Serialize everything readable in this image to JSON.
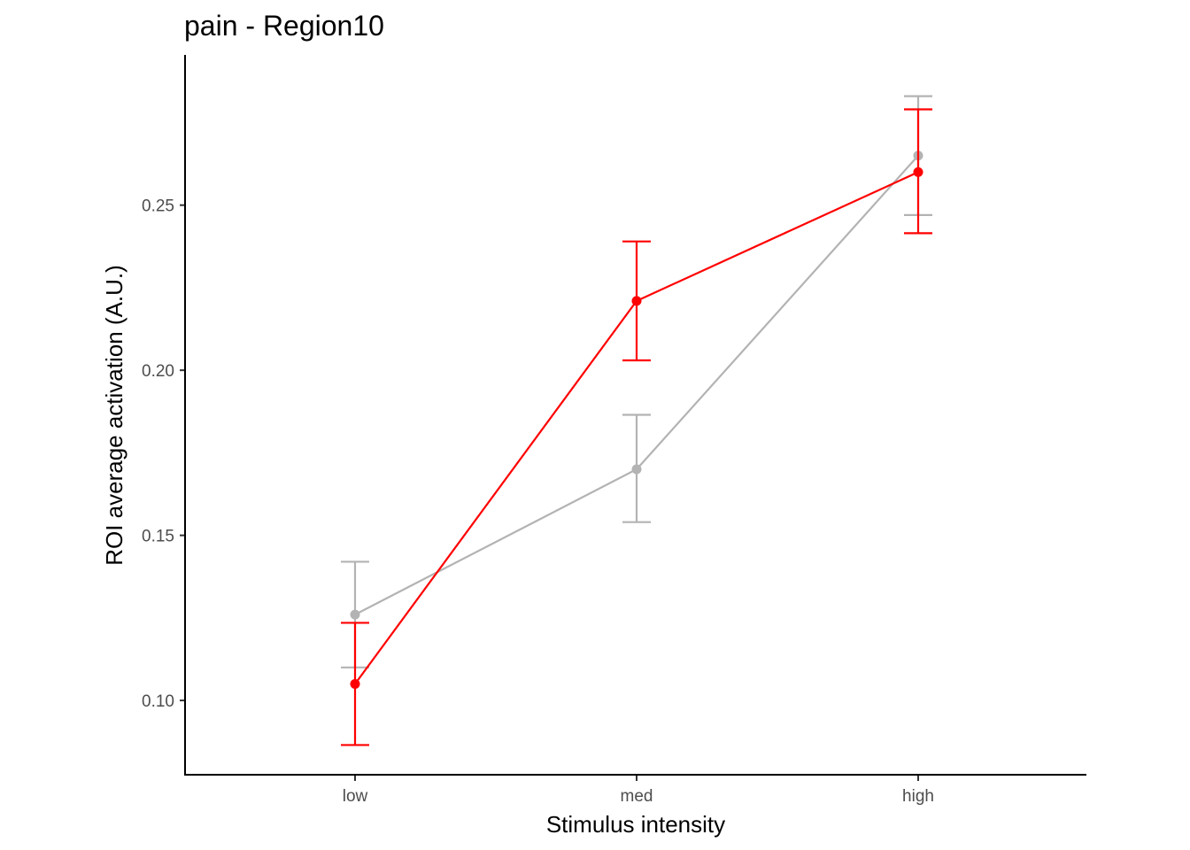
{
  "chart_data": {
    "type": "line",
    "title": "pain  -  Region10",
    "xlabel": "Stimulus intensity",
    "ylabel": "ROI average activation (A.U.)",
    "categories": [
      "low",
      "med",
      "high"
    ],
    "y_ticks": [
      "0.10",
      "0.15",
      "0.20",
      "0.25"
    ],
    "ylim": [
      0.0775,
      0.2955
    ],
    "grid": false,
    "legend": "none",
    "series": [
      {
        "color": "#b3b3b3",
        "values": [
          0.126,
          0.17,
          0.265
        ],
        "err_low": [
          0.11,
          0.154,
          0.247
        ],
        "err_high": [
          0.142,
          0.1865,
          0.283
        ]
      },
      {
        "color": "#ff0000",
        "values": [
          0.105,
          0.221,
          0.26
        ],
        "err_low": [
          0.0865,
          0.203,
          0.2415
        ],
        "err_high": [
          0.1235,
          0.239,
          0.279
        ]
      }
    ]
  }
}
